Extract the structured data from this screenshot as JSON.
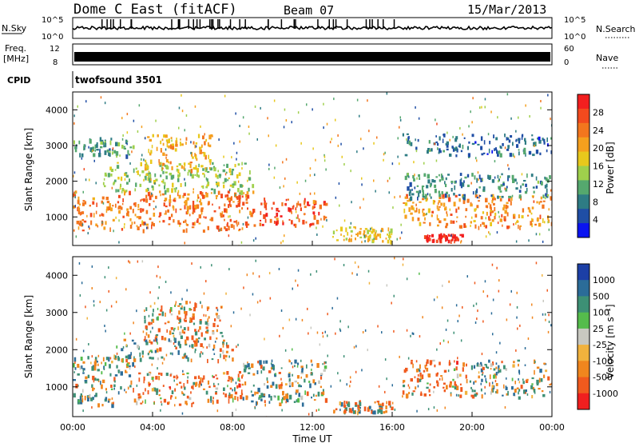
{
  "header": {
    "station": "Dome C East (fitACF)",
    "beam": "Beam 07",
    "date": "15/Mar/2013"
  },
  "strips": {
    "nsky_label": "N.Sky",
    "nsky_ticks": [
      "10^5",
      "10^0"
    ],
    "nsearch_label": "N.Search",
    "nsearch_ticks": [
      "10^5",
      "10^0"
    ],
    "freq_label": "Freq.",
    "freq_unit": "[MHz]",
    "freq_ticks": [
      "12",
      "8"
    ],
    "nave_label": "Nave",
    "nave_ticks": [
      "60",
      "0"
    ],
    "cpid_label": "CPID",
    "cpid_value": "twofsound 3501"
  },
  "colorbars": {
    "power": {
      "label": "Power [dB]",
      "ticks": [
        "28",
        "24",
        "20",
        "16",
        "12",
        "8",
        "4"
      ],
      "colors": [
        "#f21f1f",
        "#f24a1e",
        "#f3761e",
        "#f5a01e",
        "#e8c81c",
        "#9fd04c",
        "#55a86e",
        "#2e7c84",
        "#1f4ea5",
        "#0a14f0"
      ]
    },
    "velocity": {
      "label": "Velocity [m s⁻¹]",
      "ticks": [
        "1000",
        "500",
        "100",
        "25",
        "-25",
        "-100",
        "-500",
        "-1000"
      ],
      "colors": [
        "#1c3fa6",
        "#2b6c98",
        "#3d9075",
        "#55bc4c",
        "#c8c8c0",
        "#f1b23d",
        "#f0861e",
        "#f05a1e",
        "#f01f1f"
      ]
    }
  },
  "chart_data": [
    {
      "type": "heatmap",
      "name": "power",
      "ylabel": "Slant Range [km]",
      "xlabel": "",
      "xlim": [
        "00:00",
        "24:00"
      ],
      "ylim": [
        200,
        4500
      ],
      "yticks": [
        "1000",
        "2000",
        "3000",
        "4000"
      ],
      "xticks": [
        "00:00",
        "04:00",
        "08:00",
        "12:00",
        "16:00",
        "20:00",
        "00:00"
      ],
      "colorbar": "Power [dB]",
      "regions": [
        {
          "t": [
            0.0,
            9.0
          ],
          "r": [
            600,
            1700
          ],
          "value_db": 24
        },
        {
          "t": [
            9.0,
            12.7
          ],
          "r": [
            700,
            1500
          ],
          "value_db": 26
        },
        {
          "t": [
            1.5,
            9.0
          ],
          "r": [
            1700,
            2500
          ],
          "value_db": 14
        },
        {
          "t": [
            3.5,
            7.0
          ],
          "r": [
            2300,
            3300
          ],
          "value_db": 20
        },
        {
          "t": [
            0.0,
            3.0
          ],
          "r": [
            2700,
            3200
          ],
          "value_db": 10
        },
        {
          "t": [
            13.0,
            16.0
          ],
          "r": [
            300,
            700
          ],
          "value_db": 18
        },
        {
          "t": [
            16.5,
            24.0
          ],
          "r": [
            700,
            1600
          ],
          "value_db": 22
        },
        {
          "t": [
            17.5,
            19.5
          ],
          "r": [
            300,
            500
          ],
          "value_db": 30
        },
        {
          "t": [
            16.5,
            24.0
          ],
          "r": [
            1500,
            2200
          ],
          "value_db": 9
        },
        {
          "t": [
            16.5,
            24.0
          ],
          "r": [
            2700,
            3300
          ],
          "value_db": 7
        }
      ]
    },
    {
      "type": "heatmap",
      "name": "velocity",
      "ylabel": "Slant Range [km]",
      "xlabel": "Time UT",
      "xlim": [
        "00:00",
        "24:00"
      ],
      "ylim": [
        200,
        4500
      ],
      "yticks": [
        "1000",
        "2000",
        "3000",
        "4000"
      ],
      "xticks": [
        "00:00",
        "04:00",
        "08:00",
        "12:00",
        "16:00",
        "20:00",
        "00:00"
      ],
      "colorbar": "Velocity [m s⁻¹]",
      "regions": [
        {
          "t": [
            0.0,
            3.0
          ],
          "r": [
            500,
            1800
          ],
          "value_ms": 100
        },
        {
          "t": [
            3.0,
            8.5
          ],
          "r": [
            500,
            1400
          ],
          "value_ms": -300
        },
        {
          "t": [
            8.5,
            12.7
          ],
          "r": [
            500,
            1700
          ],
          "value_ms": 100
        },
        {
          "t": [
            2.0,
            8.0
          ],
          "r": [
            1700,
            2300
          ],
          "value_ms": 0
        },
        {
          "t": [
            3.5,
            7.5
          ],
          "r": [
            2300,
            3300
          ],
          "value_ms": -200
        },
        {
          "t": [
            16.5,
            20.0
          ],
          "r": [
            700,
            1700
          ],
          "value_ms": -300
        },
        {
          "t": [
            20.0,
            24.0
          ],
          "r": [
            700,
            1700
          ],
          "value_ms": 100
        },
        {
          "t": [
            13.0,
            16.0
          ],
          "r": [
            300,
            600
          ],
          "value_ms": -100
        }
      ]
    }
  ]
}
